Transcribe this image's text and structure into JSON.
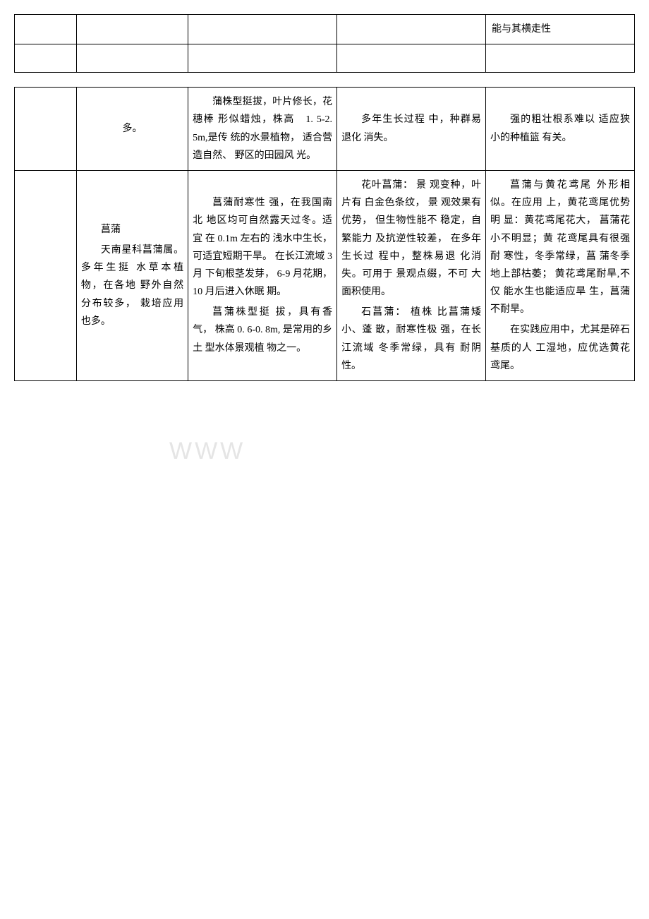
{
  "watermark": "WWW",
  "table1": {
    "rows": [
      {
        "c1": "",
        "c2": "",
        "c3": "",
        "c4": "",
        "c5": "能与其横走性"
      },
      {
        "c1": "",
        "c2": "",
        "c3": "",
        "c4": "",
        "c5": ""
      }
    ]
  },
  "table2": {
    "rows": [
      {
        "c1": "",
        "c2": "多。",
        "c3": "蒲株型挺拔，叶片修长，花穗棒 形似蜡烛，株高　1. 5-2. 5m,是传 统的水景植物， 适合营造自然、 野区的田园风 光。",
        "c4": "多年生长过程 中，种群易退化 消失。",
        "c5": "强的粗壮根系难以 适应狭小的种植篮 有关。"
      },
      {
        "c1": "",
        "c2_p1": "菖蒲",
        "c2_p2": "天南星科菖蒲属。 多年生挺 水草本植 物，在各地 野外自然 分布较多， 栽培应用 也多。",
        "c3_p1": "菖蒲耐寒性 强，在我国南北 地区均可自然露天过冬。适宜 在 0.1m 左右的 浅水中生长，可适宜短期干旱。 在长江流域 3 月 下旬根茎发芽， 6-9 月花期，10 月后进入休眠 期。",
        "c3_p2": "菖蒲株型挺 拔，具有香气， 株高 0. 6-0. 8m, 是常用的乡土 型水体景观植 物之一。",
        "c4_p1": "花叶菖蒲： 景 观变种，叶片有 白金色条纹， 景 观效果有优势， 但生物性能不 稳定，自繁能力 及抗逆性较差， 在多年生长过 程中，整株易退 化消失。可用于 景观点缀，不可 大面积使用。",
        "c4_p2": "石菖蒲： 植株 比菖蒲矮小、蓬 散，耐寒性极 强，在长江流域 冬季常绿，具有 耐阴性。",
        "c5_p1": "菖蒲与黄花鸢尾 外形相似。在应用 上，黄花鸢尾优势明 显：黄花鸢尾花大， 菖蒲花小不明显；黄 花鸢尾具有很强耐 寒性，冬季常绿，菖 蒲冬季地上部枯萎； 黄花鸢尾耐旱,不仅 能水生也能适应旱 生，菖蒲不耐旱。",
        "c5_p2": "在实践应用中，尤其是碎石基质的人 工湿地，应优选黄花 鸢尾。"
      }
    ]
  }
}
